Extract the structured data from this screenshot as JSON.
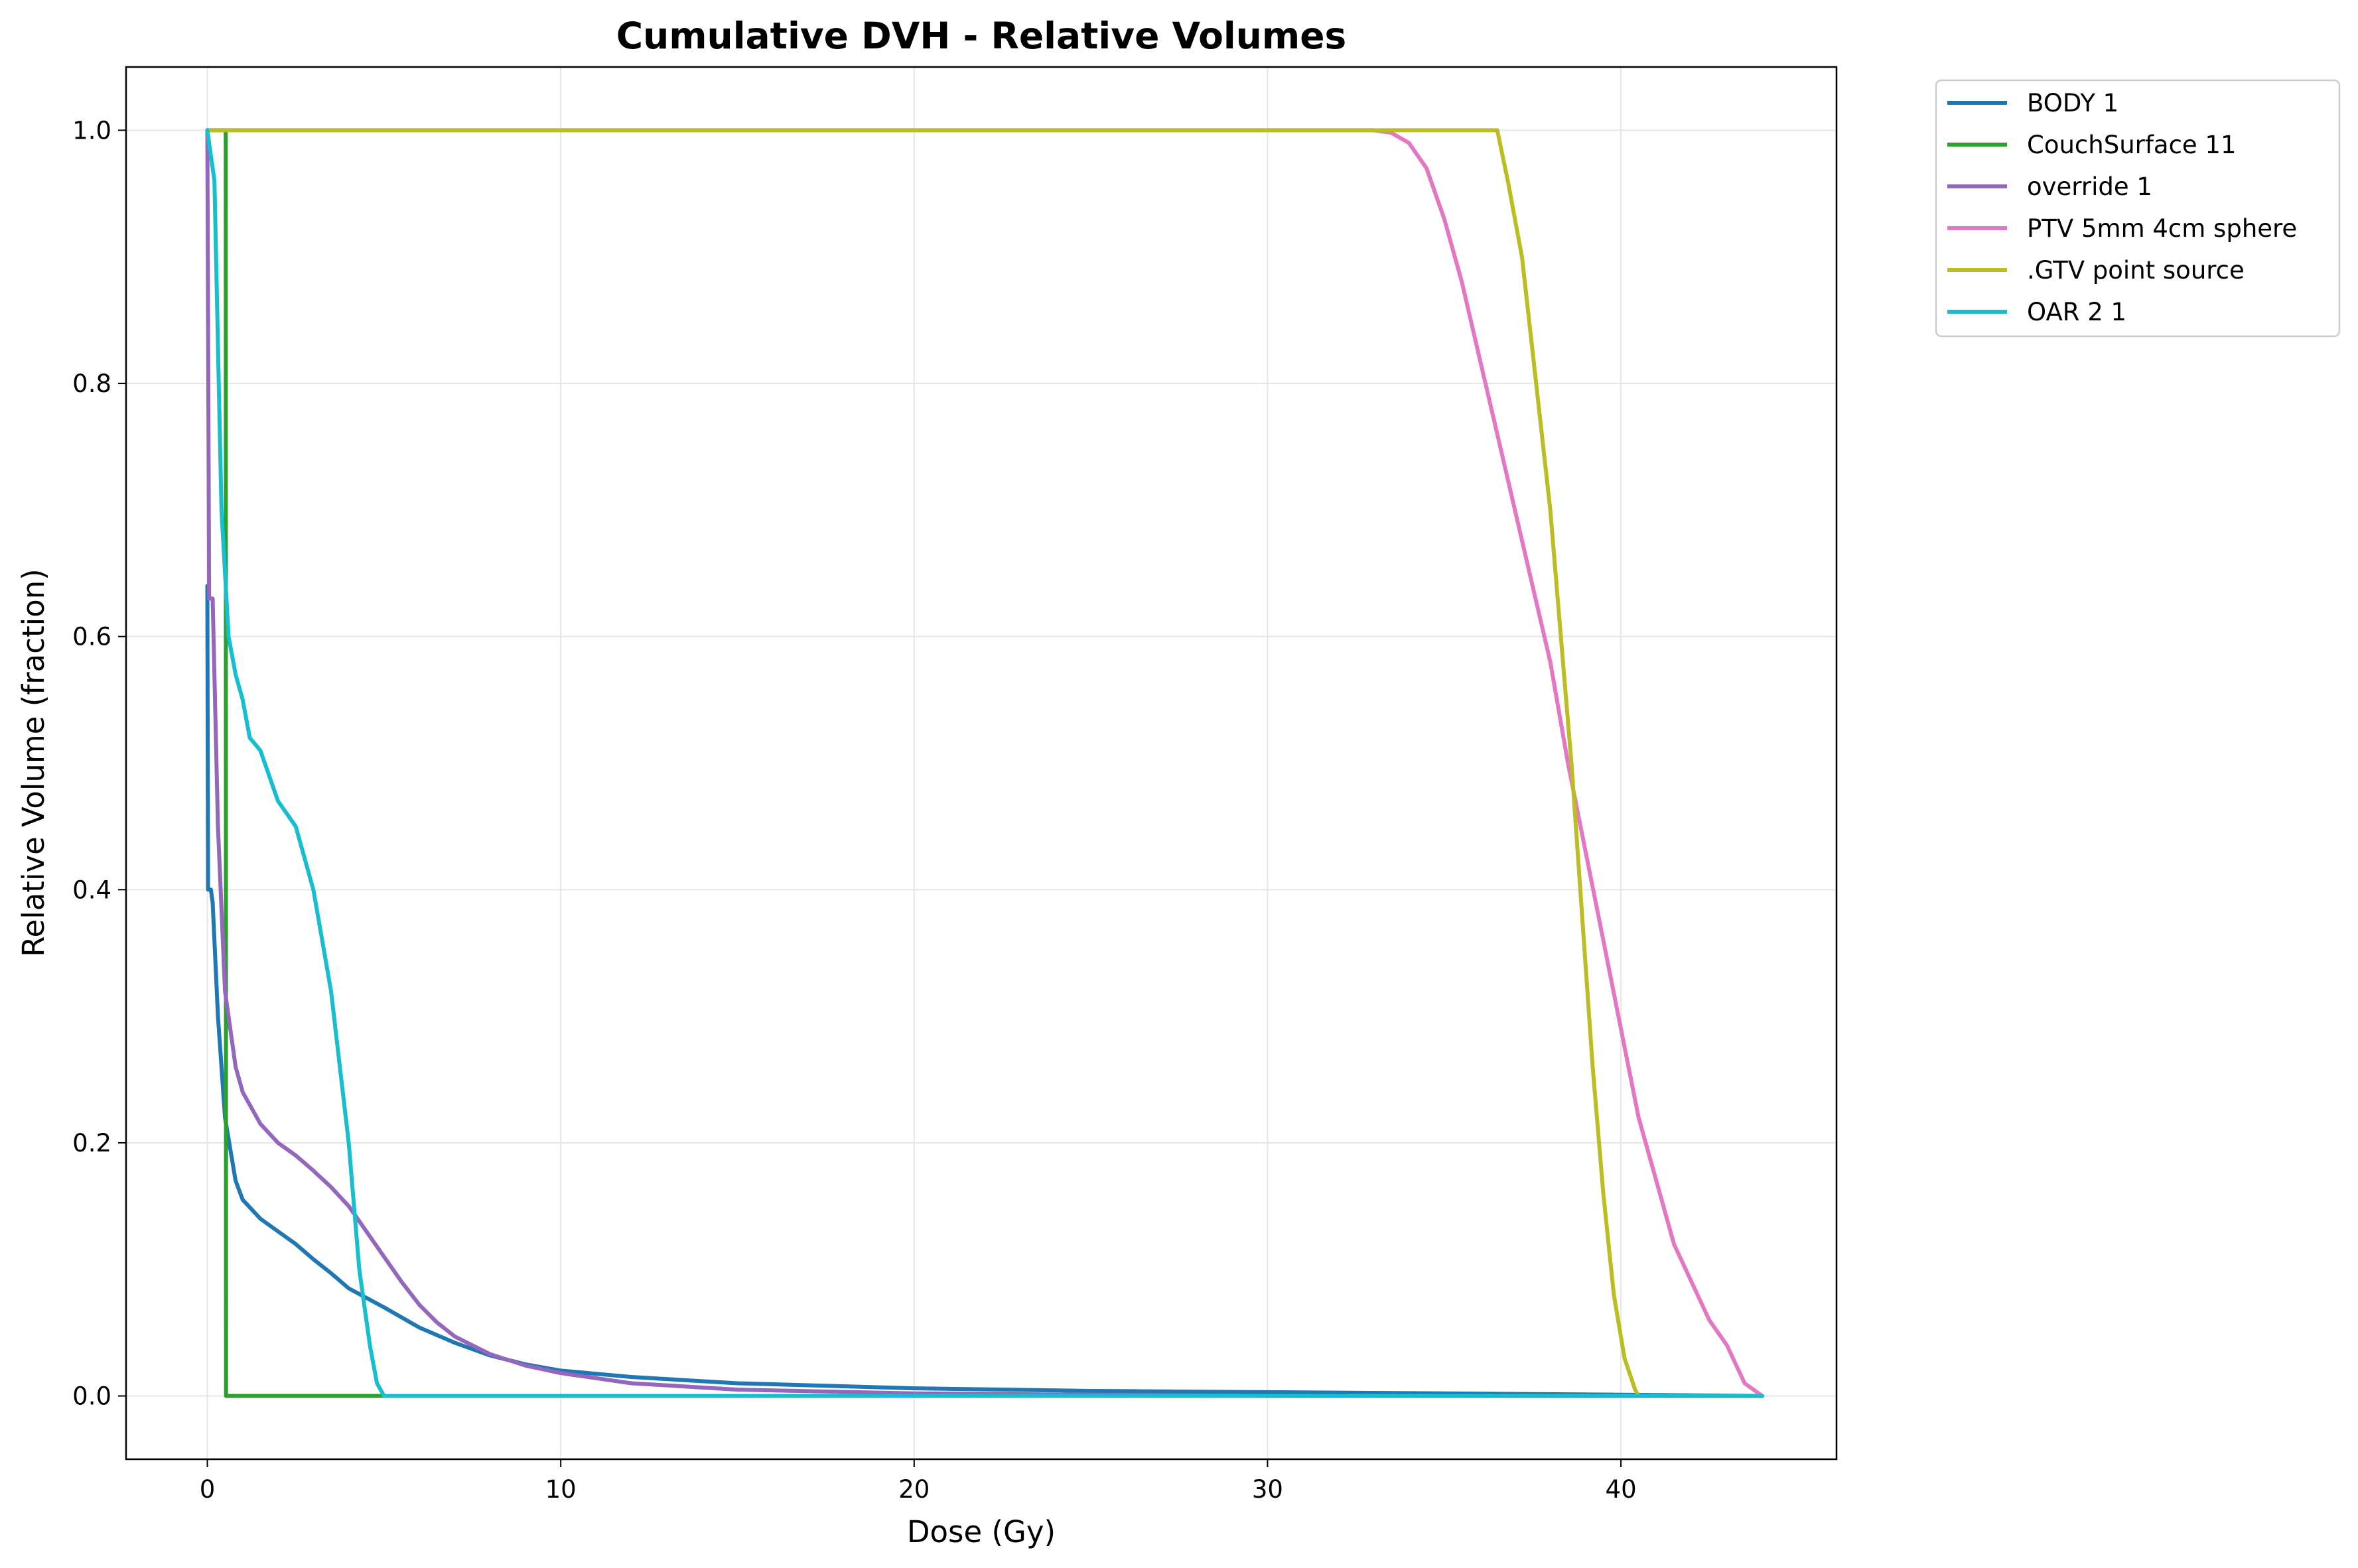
{
  "chart_data": {
    "type": "line",
    "title": "Cumulative DVH - Relative Volumes",
    "xlabel": "Dose (Gy)",
    "ylabel": "Relative Volume (fraction)",
    "xlim": [
      -2.3,
      46.1
    ],
    "ylim": [
      -0.05,
      1.05
    ],
    "xticks": [
      0,
      10,
      20,
      30,
      40
    ],
    "xtick_labels": [
      "0",
      "10",
      "20",
      "30",
      "40"
    ],
    "yticks": [
      0.0,
      0.2,
      0.4,
      0.6,
      0.8,
      1.0
    ],
    "ytick_labels": [
      "0.0",
      "0.2",
      "0.4",
      "0.6",
      "0.8",
      "1.0"
    ],
    "grid": true,
    "legend_position": "outside-top-right",
    "series": [
      {
        "name": "BODY 1",
        "color": "#1f77b4",
        "points": [
          [
            0,
            0.64
          ],
          [
            0.02,
            0.4
          ],
          [
            0.1,
            0.4
          ],
          [
            0.15,
            0.39
          ],
          [
            0.3,
            0.3
          ],
          [
            0.5,
            0.22
          ],
          [
            0.8,
            0.17
          ],
          [
            1,
            0.155
          ],
          [
            1.5,
            0.14
          ],
          [
            2,
            0.13
          ],
          [
            2.5,
            0.12
          ],
          [
            3,
            0.108
          ],
          [
            3.5,
            0.097
          ],
          [
            4,
            0.085
          ],
          [
            5,
            0.07
          ],
          [
            6,
            0.054
          ],
          [
            7,
            0.042
          ],
          [
            8,
            0.032
          ],
          [
            9,
            0.025
          ],
          [
            10,
            0.02
          ],
          [
            12,
            0.015
          ],
          [
            15,
            0.01
          ],
          [
            20,
            0.006
          ],
          [
            25,
            0.004
          ],
          [
            30,
            0.003
          ],
          [
            35,
            0.002
          ],
          [
            40,
            0.001
          ],
          [
            44,
            0.0
          ]
        ]
      },
      {
        "name": "CouchSurface 11",
        "color": "#2ca02c",
        "points": [
          [
            0,
            1.0
          ],
          [
            0.52,
            1.0
          ],
          [
            0.53,
            0.0
          ],
          [
            5.0,
            0.0
          ]
        ]
      },
      {
        "name": "override 1",
        "color": "#9467bd",
        "points": [
          [
            0,
            1.0
          ],
          [
            0.05,
            0.63
          ],
          [
            0.15,
            0.63
          ],
          [
            0.3,
            0.45
          ],
          [
            0.5,
            0.32
          ],
          [
            0.8,
            0.26
          ],
          [
            1,
            0.24
          ],
          [
            1.5,
            0.215
          ],
          [
            2,
            0.2
          ],
          [
            2.5,
            0.19
          ],
          [
            3,
            0.178
          ],
          [
            3.5,
            0.165
          ],
          [
            4,
            0.15
          ],
          [
            4.5,
            0.13
          ],
          [
            5,
            0.11
          ],
          [
            5.5,
            0.09
          ],
          [
            6,
            0.072
          ],
          [
            6.5,
            0.058
          ],
          [
            7,
            0.047
          ],
          [
            8,
            0.033
          ],
          [
            9,
            0.024
          ],
          [
            10,
            0.018
          ],
          [
            12,
            0.01
          ],
          [
            15,
            0.005
          ],
          [
            20,
            0.002
          ],
          [
            25,
            0.001
          ],
          [
            30,
            0.0
          ],
          [
            44,
            0.0
          ]
        ]
      },
      {
        "name": "PTV 5mm 4cm sphere",
        "color": "#e377c2",
        "points": [
          [
            0,
            1.0
          ],
          [
            33,
            1.0
          ],
          [
            33.5,
            0.998
          ],
          [
            34,
            0.99
          ],
          [
            34.5,
            0.97
          ],
          [
            35,
            0.93
          ],
          [
            35.5,
            0.88
          ],
          [
            36,
            0.82
          ],
          [
            36.5,
            0.76
          ],
          [
            37,
            0.7
          ],
          [
            37.5,
            0.64
          ],
          [
            38,
            0.58
          ],
          [
            38.5,
            0.5
          ],
          [
            39,
            0.43
          ],
          [
            39.5,
            0.36
          ],
          [
            40,
            0.29
          ],
          [
            40.5,
            0.22
          ],
          [
            41,
            0.17
          ],
          [
            41.5,
            0.12
          ],
          [
            42,
            0.09
          ],
          [
            42.5,
            0.06
          ],
          [
            43,
            0.04
          ],
          [
            43.5,
            0.01
          ],
          [
            44,
            0.0
          ]
        ]
      },
      {
        "name": ".GTV point source",
        "color": "#bcbd22",
        "points": [
          [
            0,
            1.0
          ],
          [
            36.5,
            1.0
          ],
          [
            36.8,
            0.96
          ],
          [
            37.2,
            0.9
          ],
          [
            37.6,
            0.8
          ],
          [
            38,
            0.7
          ],
          [
            38.3,
            0.6
          ],
          [
            38.6,
            0.5
          ],
          [
            38.9,
            0.38
          ],
          [
            39.2,
            0.26
          ],
          [
            39.5,
            0.16
          ],
          [
            39.8,
            0.08
          ],
          [
            40.1,
            0.03
          ],
          [
            40.4,
            0.005
          ],
          [
            40.5,
            0.0
          ]
        ]
      },
      {
        "name": "OAR 2 1",
        "color": "#17becf",
        "points": [
          [
            0,
            1.0
          ],
          [
            0.2,
            0.96
          ],
          [
            0.4,
            0.7
          ],
          [
            0.6,
            0.6
          ],
          [
            0.8,
            0.57
          ],
          [
            1,
            0.55
          ],
          [
            1.2,
            0.52
          ],
          [
            1.5,
            0.51
          ],
          [
            2,
            0.47
          ],
          [
            2.5,
            0.45
          ],
          [
            3,
            0.4
          ],
          [
            3.5,
            0.32
          ],
          [
            4,
            0.2
          ],
          [
            4.3,
            0.1
          ],
          [
            4.6,
            0.04
          ],
          [
            4.8,
            0.01
          ],
          [
            5,
            0.0
          ],
          [
            44,
            0.0
          ]
        ]
      }
    ]
  }
}
